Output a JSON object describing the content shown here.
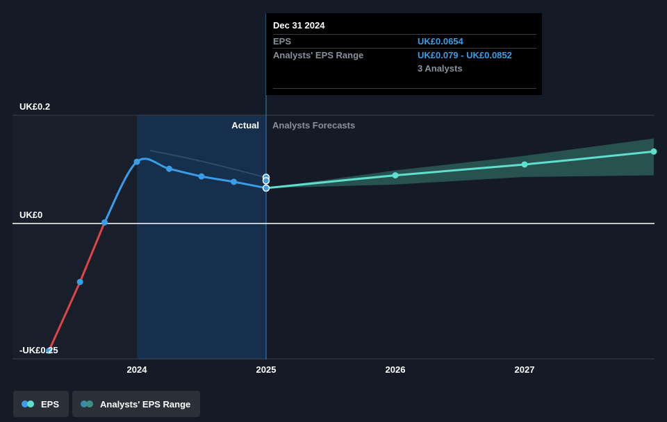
{
  "chart_data": {
    "type": "line",
    "y_axis": {
      "min": -0.25,
      "max": 0.2,
      "labels": [
        {
          "value": 0.2,
          "text": "UK£0.2"
        },
        {
          "value": 0,
          "text": "UK£0"
        },
        {
          "value": -0.25,
          "text": "-UK£0.25"
        }
      ]
    },
    "x_axis": {
      "min": 2023.3,
      "max": 2028.0,
      "ticks": [
        {
          "value": 2024,
          "text": "2024"
        },
        {
          "value": 2025,
          "text": "2025"
        },
        {
          "value": 2026,
          "text": "2026"
        },
        {
          "value": 2027,
          "text": "2027"
        }
      ]
    },
    "regions": {
      "actual_label": "Actual",
      "forecast_label": "Analysts Forecasts",
      "highlight_start": 2024.0,
      "divider": 2025.0
    },
    "series": [
      {
        "name": "EPS",
        "points": [
          {
            "x": 2023.32,
            "y": -0.235
          },
          {
            "x": 2023.56,
            "y": -0.108
          },
          {
            "x": 2023.75,
            "y": 0.002
          },
          {
            "x": 2024.0,
            "y": 0.114
          },
          {
            "x": 2024.25,
            "y": 0.101
          },
          {
            "x": 2024.5,
            "y": 0.087
          },
          {
            "x": 2024.75,
            "y": 0.077
          },
          {
            "x": 2025.0,
            "y": 0.0654
          }
        ],
        "negative_color": "#e04444",
        "positive_color": "#3a9de8"
      },
      {
        "name": "Analysts' EPS Range",
        "points": [
          {
            "x": 2025.0,
            "y": 0.0654
          },
          {
            "x": 2026.0,
            "y": 0.089
          },
          {
            "x": 2027.0,
            "y": 0.109
          },
          {
            "x": 2028.0,
            "y": 0.133
          }
        ],
        "band_low": [
          0.0654,
          0.072,
          0.086,
          0.089
        ],
        "band_high": [
          0.0654,
          0.098,
          0.125,
          0.157
        ],
        "color": "#5ee0cc"
      }
    ],
    "extra_points": [
      {
        "x": 2025.0,
        "y": 0.0852
      },
      {
        "x": 2025.0,
        "y": 0.079
      }
    ],
    "faded_line": [
      {
        "x": 2024.1,
        "y": 0.135
      },
      {
        "x": 2024.5,
        "y": 0.115
      },
      {
        "x": 2025.0,
        "y": 0.085
      }
    ]
  },
  "tooltip": {
    "date": "Dec 31 2024",
    "rows": [
      {
        "label": "EPS",
        "value": "UK£0.0654"
      },
      {
        "label": "Analysts' EPS Range",
        "value": "UK£0.079 - UK£0.0852"
      }
    ],
    "sub": "3 Analysts"
  },
  "legend": {
    "items": [
      {
        "label": "EPS",
        "colors": [
          "#3a9de8",
          "#5ee0cc"
        ]
      },
      {
        "label": "Analysts' EPS Range",
        "colors": [
          "#3a8aa8",
          "#3f8f86"
        ]
      }
    ]
  },
  "colors": {
    "background": "#151b26",
    "highlight": "#16365a",
    "gridline": "#3a3f47",
    "zero_line": "#ffffff",
    "band_fill": "#2b5c58"
  }
}
